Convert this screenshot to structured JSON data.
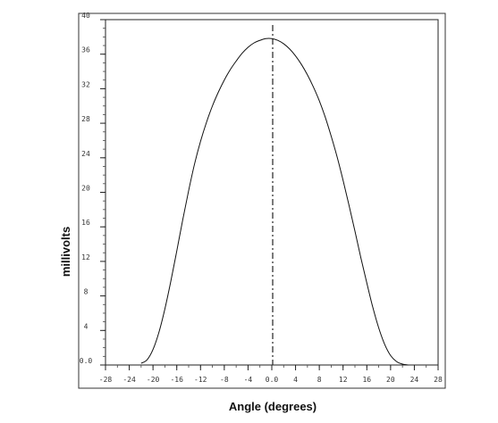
{
  "chart_data": {
    "type": "line",
    "xlabel": "Angle (degrees)",
    "ylabel": "millivolts",
    "xlim": [
      -28,
      28
    ],
    "ylim": [
      0,
      40
    ],
    "xticks": [
      "-28",
      "-24",
      "-20",
      "-16",
      "-12",
      "-8",
      "-4",
      "0.0",
      "4",
      "8",
      "12",
      "16",
      "20",
      "24",
      "28"
    ],
    "xtick_values": [
      -28,
      -24,
      -20,
      -16,
      -12,
      -8,
      -4,
      0,
      4,
      8,
      12,
      16,
      20,
      24,
      28
    ],
    "yticks": [
      "0.0",
      "4",
      "8",
      "12",
      "16",
      "20",
      "24",
      "28",
      "32",
      "36",
      "40"
    ],
    "ytick_values": [
      0,
      4,
      8,
      12,
      16,
      20,
      24,
      28,
      32,
      36,
      40
    ],
    "grid": false,
    "reference_line": {
      "style": "dash-dot",
      "x": 0
    },
    "series": [
      {
        "color": "#111111",
        "x": [
          -22,
          -21,
          -20,
          -19,
          -18,
          -17,
          -16,
          -15,
          -14,
          -13,
          -12,
          -11,
          -10,
          -9,
          -8,
          -7,
          -6,
          -5,
          -4,
          -3,
          -2,
          -1,
          0,
          1,
          2,
          3,
          4,
          5,
          6,
          7,
          8,
          9,
          10,
          11,
          12,
          13,
          14,
          15,
          16,
          17,
          18,
          19,
          20,
          21,
          22,
          23
        ],
        "y": [
          0.2,
          0.6,
          1.8,
          3.8,
          6.5,
          9.7,
          13.2,
          16.8,
          20.2,
          23.3,
          25.9,
          28.1,
          30.0,
          31.6,
          33.0,
          34.2,
          35.2,
          36.1,
          36.8,
          37.3,
          37.6,
          37.8,
          37.8,
          37.6,
          37.2,
          36.6,
          35.8,
          34.8,
          33.6,
          32.2,
          30.6,
          28.7,
          26.5,
          24.1,
          21.4,
          18.5,
          15.5,
          12.4,
          9.5,
          6.7,
          4.3,
          2.4,
          1.1,
          0.4,
          0.1,
          0.0
        ]
      }
    ]
  }
}
